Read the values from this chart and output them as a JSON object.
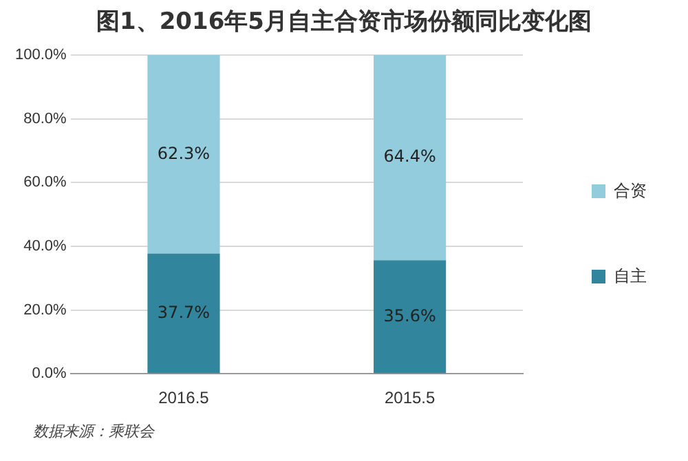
{
  "chart_data": {
    "type": "bar",
    "title": "图1、2016年5月自主合资市场份额同比变化图",
    "categories": [
      "2016.5",
      "2015.5"
    ],
    "stacked": true,
    "series": [
      {
        "name": "自主",
        "color": "#31859c",
        "values": [
          37.7,
          35.6
        ],
        "value_labels": [
          "37.7%",
          "35.6%"
        ]
      },
      {
        "name": "合资",
        "color": "#93cddd",
        "values": [
          62.3,
          64.4
        ],
        "value_labels": [
          "62.3%",
          "64.4%"
        ]
      }
    ],
    "ylim": [
      0,
      100
    ],
    "yticks": [
      {
        "value": 0,
        "label": "0.0%"
      },
      {
        "value": 20,
        "label": "20.0%"
      },
      {
        "value": 40,
        "label": "40.0%"
      },
      {
        "value": 60,
        "label": "60.0%"
      },
      {
        "value": 80,
        "label": "80.0%"
      },
      {
        "value": 100,
        "label": "100.0%"
      }
    ],
    "grid": "y",
    "legend": "right",
    "annotations": [
      "数据来源：乘联会"
    ]
  }
}
